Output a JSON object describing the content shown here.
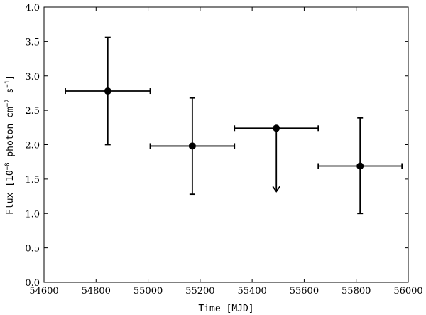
{
  "chart_data": {
    "type": "scatter",
    "title": "",
    "xlabel": "Time [MJD]",
    "ylabel": {
      "prefix": "Flux [10",
      "exp1": "−8",
      "mid1": " photon cm",
      "exp2": "−2",
      "mid2": " s",
      "exp3": "−1",
      "suffix": "]"
    },
    "xlim": [
      54600,
      56000
    ],
    "ylim": [
      0.0,
      4.0
    ],
    "xticks": [
      54600,
      54800,
      55000,
      55200,
      55400,
      55600,
      55800,
      56000
    ],
    "yticks": [
      0.0,
      0.5,
      1.0,
      1.5,
      2.0,
      2.5,
      3.0,
      3.5,
      4.0
    ],
    "ytick_labels": [
      "0.0",
      "0.5",
      "1.0",
      "1.5",
      "2.0",
      "2.5",
      "3.0",
      "3.5",
      "4.0"
    ],
    "grid": false,
    "legend": "none",
    "color": "#000000",
    "points": [
      {
        "x": 54845,
        "y": 2.78,
        "xmin": 54682,
        "xmax": 55008,
        "ymin": 2.0,
        "ymax": 3.56,
        "upper_limit": false
      },
      {
        "x": 55170,
        "y": 1.98,
        "xmin": 55008,
        "xmax": 55332,
        "ymin": 1.28,
        "ymax": 2.68,
        "upper_limit": false
      },
      {
        "x": 55493,
        "y": 2.24,
        "xmin": 55332,
        "xmax": 55654,
        "ymin": 1.32,
        "ymax": 2.24,
        "upper_limit": true
      },
      {
        "x": 55815,
        "y": 1.69,
        "xmin": 55654,
        "xmax": 55976,
        "ymin": 1.0,
        "ymax": 2.39,
        "upper_limit": false
      }
    ]
  }
}
